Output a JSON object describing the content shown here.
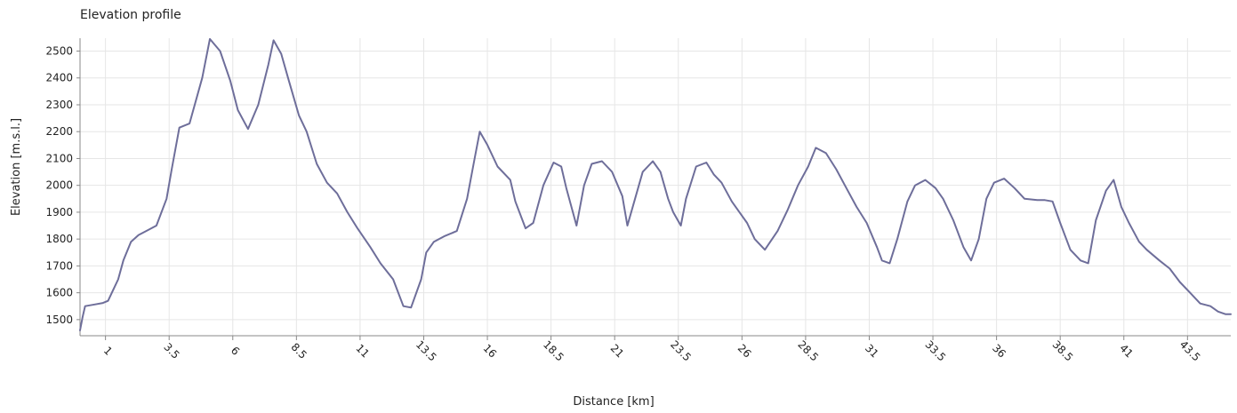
{
  "chart_data": {
    "type": "line",
    "title": "Elevation profile",
    "xlabel": "Distance [km]",
    "ylabel": "Elevation [m.s.l.]",
    "xlim": [
      0,
      45.2
    ],
    "ylim": [
      1440,
      2548
    ],
    "x_ticks": [
      1,
      3.5,
      6,
      8.5,
      11,
      13.5,
      16,
      18.5,
      21,
      23.5,
      26,
      28.5,
      31,
      33.5,
      36,
      38.5,
      41,
      43.5
    ],
    "x_tick_labels": [
      "1",
      "3.5",
      "6",
      "8.5",
      "11",
      "13.5",
      "16",
      "18.5",
      "21",
      "23.5",
      "26",
      "28.5",
      "31",
      "33.5",
      "36",
      "38.5",
      "41",
      "43.5"
    ],
    "y_ticks": [
      1500,
      1600,
      1700,
      1800,
      1900,
      2000,
      2100,
      2200,
      2300,
      2400,
      2500
    ],
    "y_tick_labels": [
      "1500",
      "1600",
      "1700",
      "1800",
      "1900",
      "2000",
      "2100",
      "2200",
      "2300",
      "2400",
      "2500"
    ],
    "grid": true,
    "line_color": "#6e6e9a",
    "series": [
      {
        "x": [
          0.0,
          0.1,
          0.2,
          0.5,
          0.9,
          1.1,
          1.5,
          1.7,
          2.0,
          2.3,
          2.6,
          3.0,
          3.4,
          3.6,
          3.9,
          4.3,
          4.8,
          5.1,
          5.5,
          5.9,
          6.2,
          6.6,
          7.0,
          7.4,
          7.6,
          7.9,
          8.2,
          8.6,
          8.9,
          9.3,
          9.7,
          10.1,
          10.5,
          10.9,
          11.4,
          11.8,
          12.3,
          12.7,
          13.0,
          13.4,
          13.6,
          13.9,
          14.3,
          14.8,
          15.2,
          15.5,
          15.7,
          16.0,
          16.4,
          16.9,
          17.1,
          17.5,
          17.8,
          18.2,
          18.6,
          18.9,
          19.1,
          19.5,
          19.8,
          20.1,
          20.5,
          20.9,
          21.3,
          21.5,
          21.8,
          22.1,
          22.5,
          22.8,
          23.1,
          23.3,
          23.6,
          23.8,
          24.2,
          24.6,
          24.9,
          25.2,
          25.6,
          25.9,
          26.2,
          26.5,
          26.9,
          27.4,
          27.8,
          28.2,
          28.6,
          28.9,
          29.3,
          29.7,
          30.1,
          30.5,
          30.9,
          31.3,
          31.5,
          31.8,
          32.1,
          32.5,
          32.8,
          33.2,
          33.6,
          33.9,
          34.3,
          34.7,
          35.0,
          35.3,
          35.6,
          35.9,
          36.3,
          36.7,
          37.1,
          37.6,
          37.9,
          38.2,
          38.5,
          38.9,
          39.3,
          39.6,
          39.9,
          40.3,
          40.6,
          40.9,
          41.2,
          41.6,
          41.9,
          42.4,
          42.8,
          43.2,
          43.6,
          44.0,
          44.4,
          44.7,
          45.0,
          45.2
        ],
        "y": [
          1460,
          1510,
          1550,
          1555,
          1562,
          1570,
          1650,
          1720,
          1790,
          1815,
          1830,
          1850,
          1950,
          2060,
          2215,
          2230,
          2400,
          2545,
          2500,
          2390,
          2280,
          2210,
          2300,
          2450,
          2540,
          2490,
          2390,
          2260,
          2200,
          2080,
          2010,
          1970,
          1900,
          1840,
          1770,
          1710,
          1650,
          1550,
          1545,
          1650,
          1750,
          1790,
          1810,
          1830,
          1950,
          2100,
          2200,
          2150,
          2070,
          2020,
          1940,
          1840,
          1860,
          2000,
          2085,
          2070,
          1990,
          1850,
          2000,
          2080,
          2090,
          2050,
          1960,
          1850,
          1950,
          2050,
          2090,
          2050,
          1950,
          1900,
          1850,
          1950,
          2070,
          2085,
          2040,
          2010,
          1940,
          1900,
          1860,
          1800,
          1760,
          1830,
          1910,
          2000,
          2070,
          2140,
          2120,
          2060,
          1990,
          1920,
          1860,
          1770,
          1720,
          1710,
          1800,
          1940,
          2000,
          2020,
          1990,
          1950,
          1870,
          1770,
          1720,
          1800,
          1950,
          2010,
          2025,
          1990,
          1950,
          1945,
          1945,
          1940,
          1860,
          1760,
          1720,
          1710,
          1870,
          1980,
          2020,
          1920,
          1860,
          1790,
          1760,
          1720,
          1690,
          1640,
          1600,
          1560,
          1550,
          1530,
          1520,
          1520
        ]
      }
    ]
  }
}
